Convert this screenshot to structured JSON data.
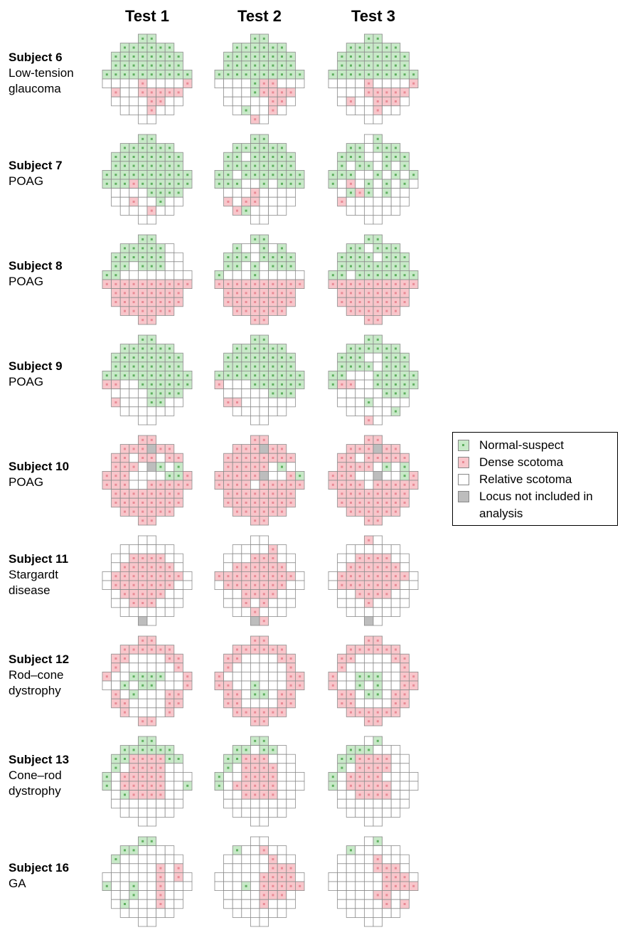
{
  "tests": [
    "Test 1",
    "Test 2",
    "Test 3"
  ],
  "legend": [
    {
      "label": "Normal-suspect",
      "color": "#c8e9c8",
      "dot": "#5fb05f"
    },
    {
      "label": "Dense scotoma",
      "color": "#f8c6cb",
      "dot": "#e98a95"
    },
    {
      "label": "Relative scotoma",
      "color": "#ffffff",
      "dot": null
    },
    {
      "label": "Locus not included in analysis",
      "color": "#bdbdbd",
      "dot": null
    }
  ],
  "subjects": [
    {
      "name": "Subject 6",
      "condition": "Low-tension glaucoma",
      "grids": [
        [
          "00",
          "000000",
          "00000000",
          "00000000",
          "0000000000",
          "2222122221",
          "12211111",
          "22221122",
          "222122",
          "22"
        ],
        [
          "00",
          "000000",
          "00000000",
          "00000000",
          "0000000000",
          "2222011222",
          "22201111",
          "22222112",
          "202212",
          "12"
        ],
        [
          "00",
          "000000",
          "00000000",
          "00000000",
          "0000000000",
          "2222122221",
          "22211111",
          "21221112",
          "222122",
          "22"
        ]
      ]
    },
    {
      "name": "Subject 7",
      "condition": "POAG",
      "grids": [
        [
          "00",
          "000000",
          "00000000",
          "00000000",
          "0000000000",
          "0001000000",
          "22220000",
          "22122022",
          "222122",
          "22"
        ],
        [
          "00",
          "000000",
          "00200000",
          "00000000",
          "0020000000",
          "0002202000",
          "22212222",
          "12112222",
          "102222",
          "22"
        ],
        [
          "20",
          "002000",
          "00022000",
          "02002020",
          "0002202020",
          "0212020202",
          "20102022",
          "12222222",
          "222222",
          "22"
        ]
      ]
    },
    {
      "name": "Subject 8",
      "condition": "POAG",
      "grids": [
        [
          "00",
          "000002",
          "00000022",
          "00200022",
          "0022222222",
          "1111111111",
          "11111111",
          "11111111",
          "111111",
          "11"
        ],
        [
          "00",
          "022020",
          "00020000",
          "00202000",
          "0222022222",
          "1111111111",
          "11111111",
          "11111111",
          "111111",
          "11"
        ],
        [
          "00",
          "002000",
          "00002000",
          "00000000",
          "0020000000",
          "1111111111",
          "11111111",
          "11111111",
          "111111",
          "11"
        ]
      ]
    },
    {
      "name": "Subject 9",
      "condition": "POAG",
      "grids": [
        [
          "00",
          "000000",
          "00000000",
          "00000000",
          "0000000000",
          "1122000000",
          "22220000",
          "12220022",
          "222222",
          "22"
        ],
        [
          "00",
          "000000",
          "00000000",
          "00000000",
          "0000000000",
          "1222000000",
          "22222000",
          "11222222",
          "222222",
          "22"
        ],
        [
          "00",
          "000000",
          "00022000",
          "00002000",
          "0022200000",
          "0112200000",
          "22222000",
          "22202222",
          "222220",
          "12"
        ]
      ]
    },
    {
      "name": "Subject 10",
      "condition": "POAG",
      "grids": [
        [
          "11",
          "111311",
          "11211211",
          "11123020",
          "1112222001",
          "1112211111",
          "11111111",
          "11111111",
          "111111",
          "11"
        ],
        [
          "11",
          "111311",
          "11111111",
          "11111202",
          "1111132210",
          "1111211111",
          "11111111",
          "11111111",
          "111111",
          "11"
        ],
        [
          "11",
          "111311",
          "11211111",
          "11112020",
          "1112232201",
          "1111211111",
          "11111111",
          "11111111",
          "111111",
          "11"
        ]
      ]
    },
    {
      "name": "Subject 11",
      "condition": "Stargardt disease",
      "grids": [
        [
          "22",
          "222222",
          "22111122",
          "21111112",
          "2111111112",
          "2111111122",
          "21111122",
          "22111222",
          "222222",
          "32"
        ],
        [
          "22",
          "222212",
          "22211122",
          "21111112",
          "1111111112",
          "2111111122",
          "22111122",
          "22121222",
          "221222",
          "31"
        ],
        [
          "12",
          "222222",
          "22111122",
          "21111112",
          "2111111112",
          "2111111122",
          "22111122",
          "22212222",
          "222222",
          "32"
        ]
      ]
    },
    {
      "name": "Subject 12",
      "condition": "Rod–cone dystrophy",
      "grids": [
        [
          "11",
          "111111",
          "11222211",
          "12222221",
          "1220000221",
          "2202002221",
          "12022211",
          "11222211",
          "122221",
          "11"
        ],
        [
          "11",
          "111111",
          "11222211",
          "12222221",
          "1222222211",
          "1122022211",
          "11200211",
          "11222211",
          "111111",
          "11"
        ],
        [
          "11",
          "111111",
          "11222211",
          "12222221",
          "1220002211",
          "1220202211",
          "11200211",
          "11222211",
          "111111",
          "11"
        ]
      ]
    },
    {
      "name": "Subject 13",
      "condition": "Cone–rod dystrophy",
      "grids": [
        [
          "00",
          "000000",
          "00111100",
          "02111122",
          "0211111222",
          "0211111220",
          "20111122",
          "22222222",
          "222222",
          "22"
        ],
        [
          "00",
          "002002",
          "00111222",
          "02111122",
          "0221111222",
          "0211111222",
          "22111122",
          "22222222",
          "222222",
          "22"
        ],
        [
          "20",
          "000222",
          "00111122",
          "02111122",
          "0211112222",
          "0211111222",
          "22111122",
          "22222222",
          "222222",
          "22"
        ]
      ]
    },
    {
      "name": "Subject 16",
      "condition": "GA",
      "grids": [
        [
          "00",
          "002222",
          "02222222",
          "22222121",
          "2222221212",
          "0220221222",
          "22022122",
          "20222122",
          "222222",
          "22"
        ],
        [
          "22",
          "022122",
          "22222122",
          "22222111",
          "2222211112",
          "2220211111",
          "22221112",
          "22221222",
          "222222",
          "22"
        ],
        [
          "20",
          "022222",
          "22221222",
          "22221112",
          "2222221112",
          "2222221111",
          "22221122",
          "22222121",
          "222222",
          "22"
        ]
      ]
    }
  ]
}
